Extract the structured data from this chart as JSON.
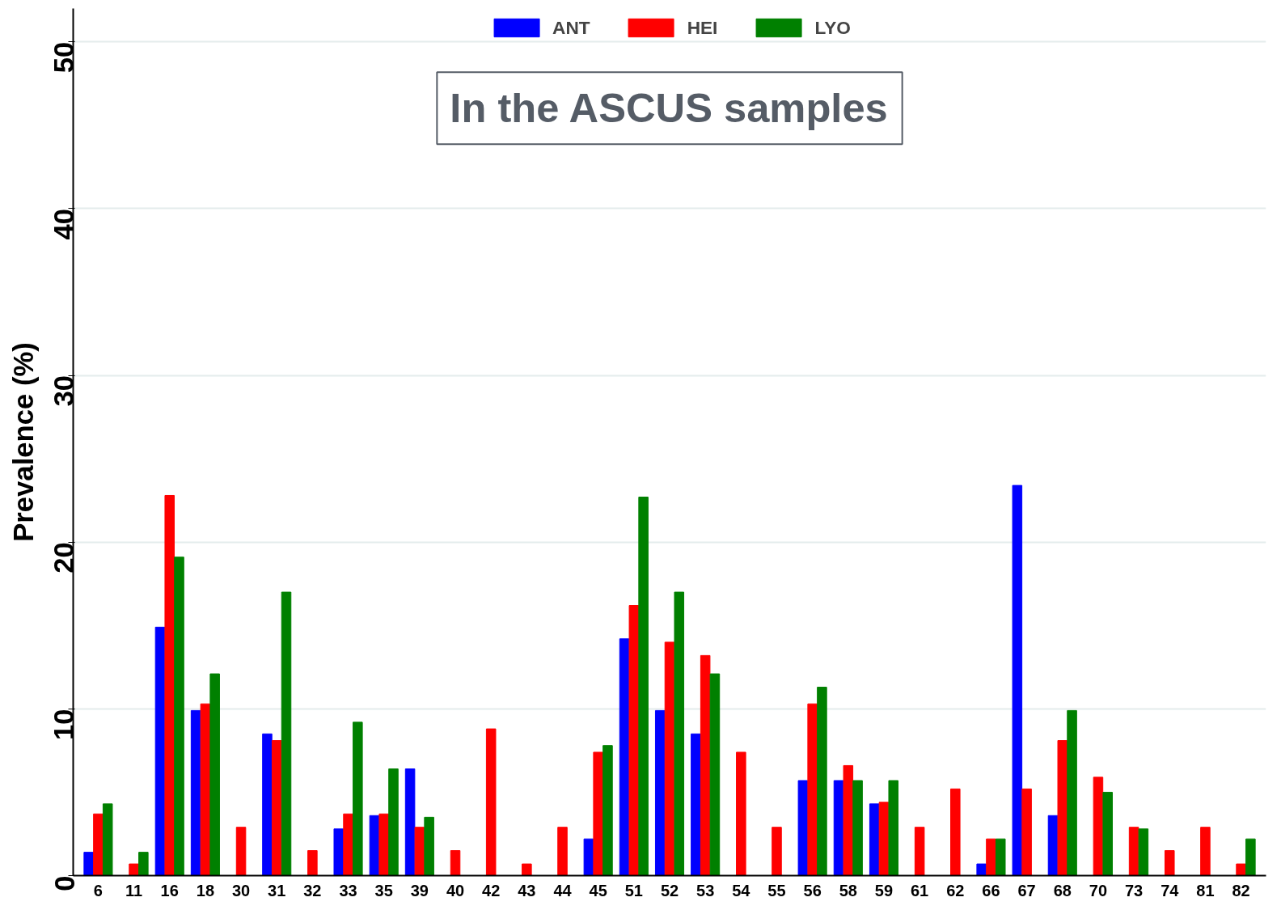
{
  "chart_data": {
    "type": "bar",
    "title": "In the ASCUS samples",
    "ylabel": "Prevalence (%)",
    "categories": [
      "6",
      "11",
      "16",
      "18",
      "30",
      "31",
      "32",
      "33",
      "35",
      "39",
      "40",
      "42",
      "43",
      "44",
      "45",
      "51",
      "52",
      "53",
      "54",
      "55",
      "56",
      "58",
      "59",
      "61",
      "62",
      "66",
      "67",
      "68",
      "70",
      "73",
      "74",
      "81",
      "82"
    ],
    "series": [
      {
        "name": "ANT",
        "color": "#0000ff",
        "values": [
          1.4,
          0,
          14.9,
          9.9,
          0,
          8.5,
          0,
          2.8,
          3.6,
          6.4,
          0,
          0,
          0,
          0,
          2.2,
          14.2,
          9.9,
          8.5,
          0,
          0,
          5.7,
          5.7,
          4.3,
          0,
          0,
          0.7,
          23.4,
          3.6,
          0,
          0,
          0,
          0,
          0
        ]
      },
      {
        "name": "HEI",
        "color": "#ff0000",
        "values": [
          3.7,
          0.7,
          22.8,
          10.3,
          2.9,
          8.1,
          1.5,
          3.7,
          3.7,
          2.9,
          1.5,
          8.8,
          0.7,
          2.9,
          7.4,
          16.2,
          14.0,
          13.2,
          7.4,
          2.9,
          10.3,
          6.6,
          4.4,
          2.9,
          5.2,
          2.2,
          5.2,
          8.1,
          5.9,
          2.9,
          1.5,
          2.9,
          0.7
        ]
      },
      {
        "name": "LYO",
        "color": "#008000",
        "values": [
          4.3,
          1.4,
          19.1,
          12.1,
          0,
          17.0,
          0,
          9.2,
          6.4,
          3.5,
          0,
          0,
          0,
          0,
          7.8,
          22.7,
          17.0,
          12.1,
          0,
          0,
          11.3,
          5.7,
          5.7,
          0,
          0,
          2.2,
          0,
          9.9,
          5.0,
          2.8,
          0,
          0,
          2.2
        ]
      }
    ],
    "ylim": [
      0,
      52
    ],
    "yticks": [
      0,
      10,
      20,
      30,
      40,
      50
    ],
    "grid": "y",
    "legend": "top"
  }
}
